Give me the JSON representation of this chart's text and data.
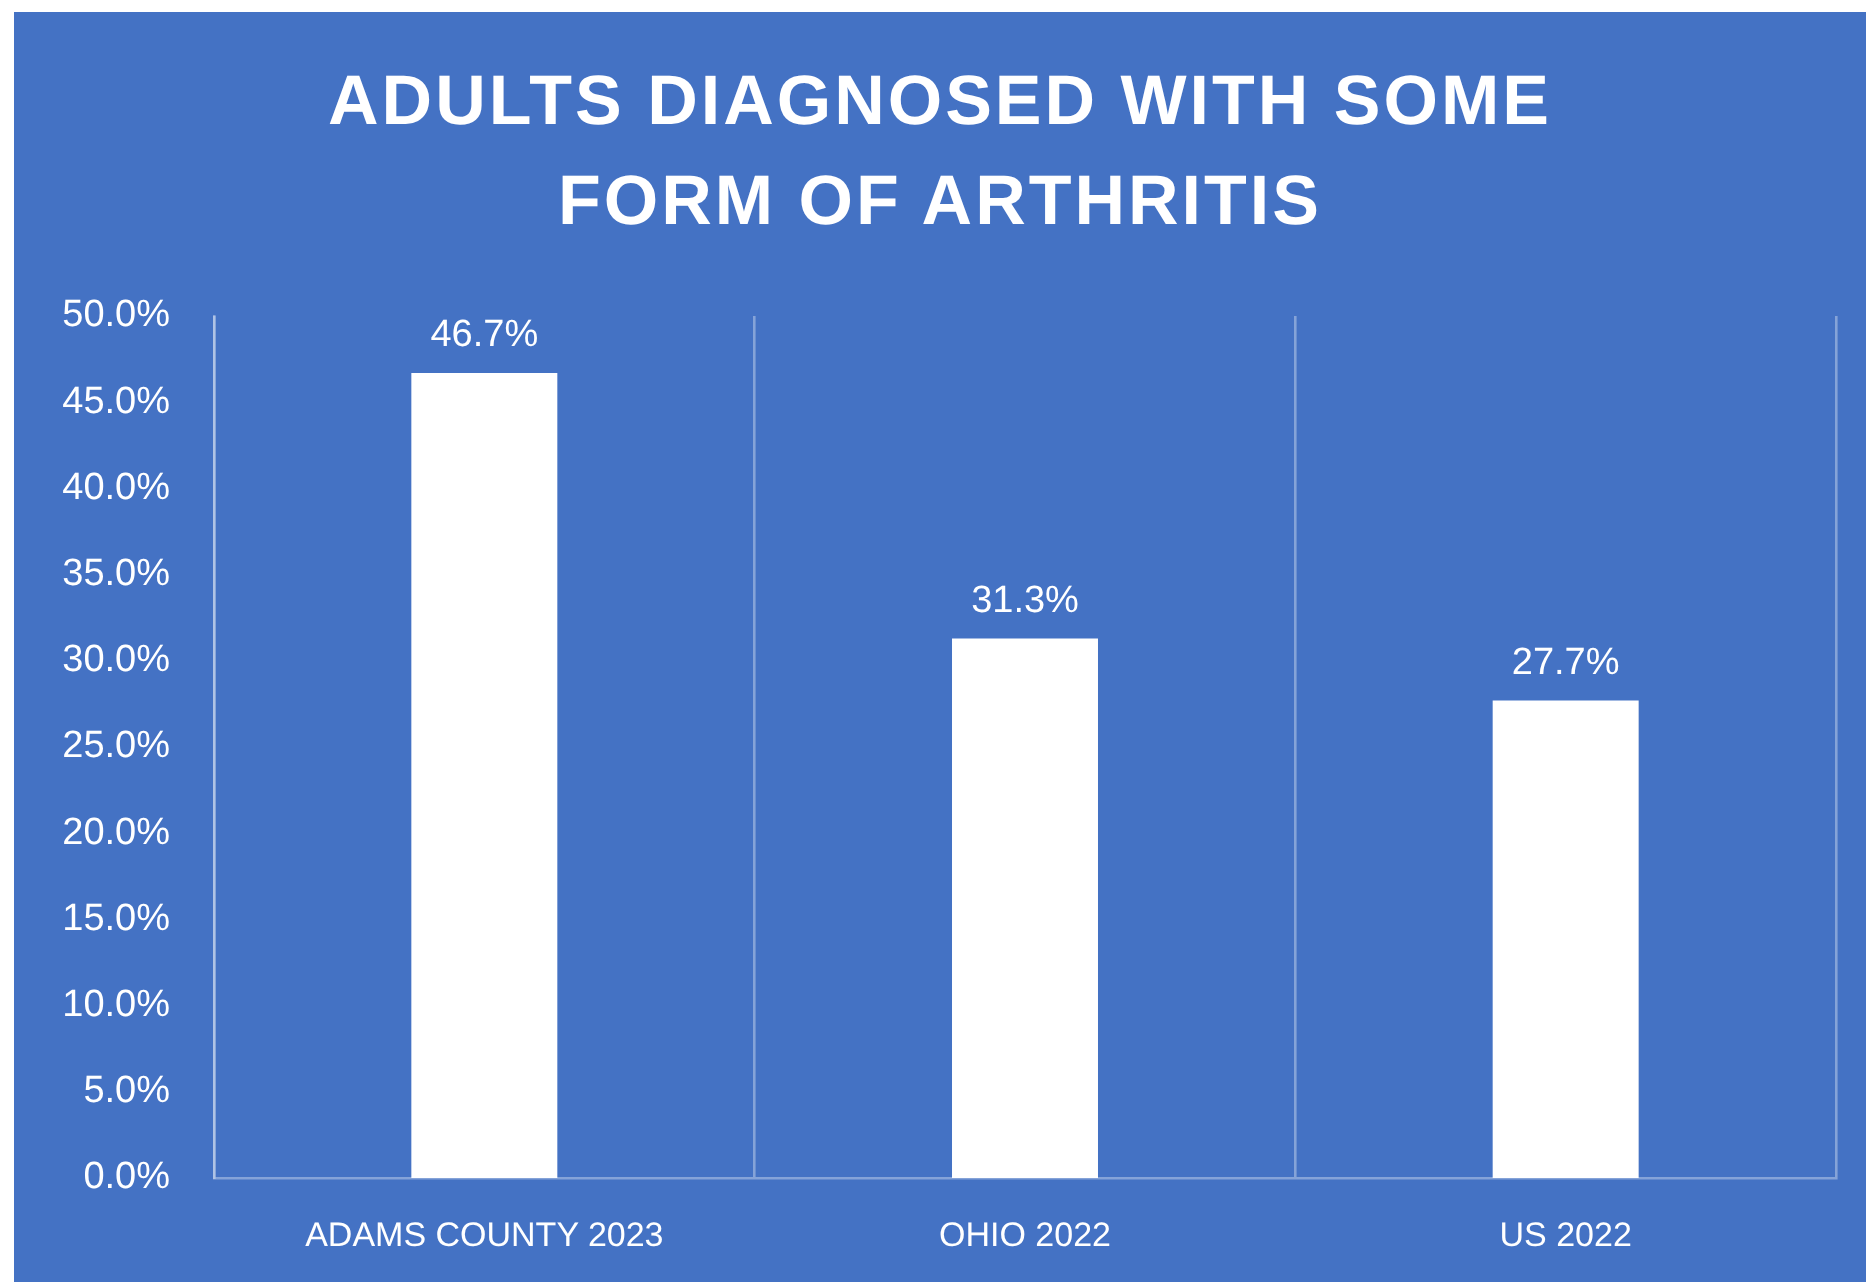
{
  "chart_data": {
    "type": "bar",
    "title": "ADULTS DIAGNOSED WITH SOME FORM OF ARTHRITIS",
    "categories": [
      "ADAMS COUNTY 2023",
      "OHIO 2022",
      "US 2022"
    ],
    "values": [
      46.7,
      31.3,
      27.7
    ],
    "color": "#ffffff",
    "value_labels": [
      "46.7%",
      "31.3%",
      "27.7%"
    ],
    "ylim": [
      0,
      50
    ],
    "yticks": [
      {
        "value": 0,
        "label": "0.0%"
      },
      {
        "value": 5,
        "label": "5.0%"
      },
      {
        "value": 10,
        "label": "10.0%"
      },
      {
        "value": 15,
        "label": "15.0%"
      },
      {
        "value": 20,
        "label": "20.0%"
      },
      {
        "value": 25,
        "label": "25.0%"
      },
      {
        "value": 30,
        "label": "30.0%"
      },
      {
        "value": 35,
        "label": "35.0%"
      },
      {
        "value": 40,
        "label": "40.0%"
      },
      {
        "value": 45,
        "label": "45.0%"
      },
      {
        "value": 50,
        "label": "50.0%"
      }
    ],
    "grid": "x"
  }
}
